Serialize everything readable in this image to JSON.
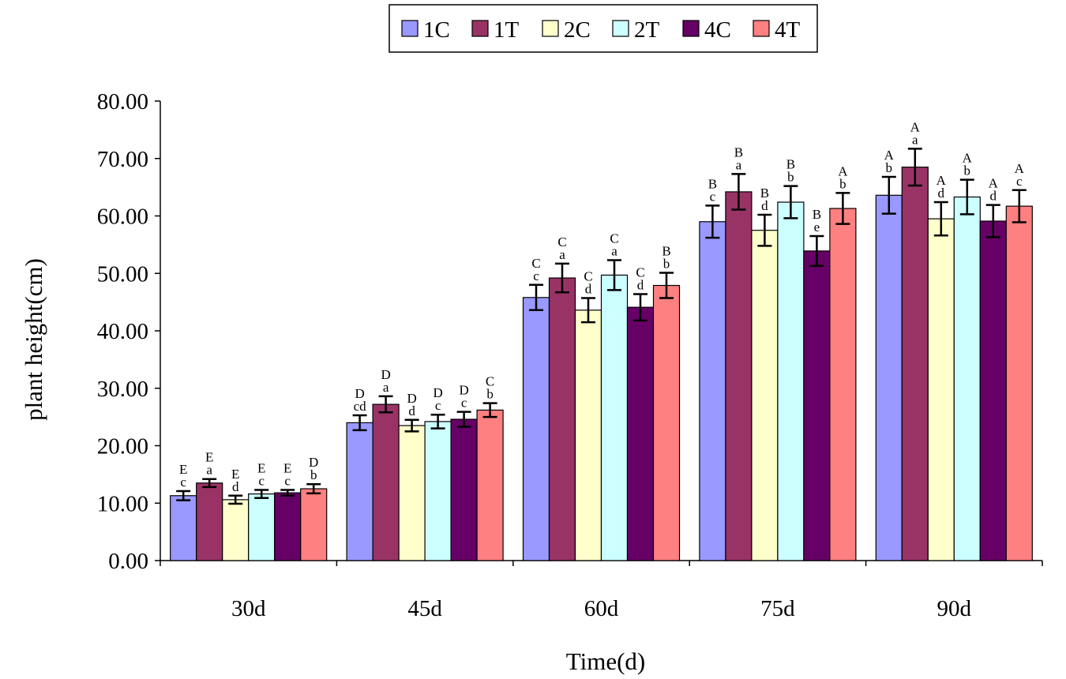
{
  "chart_data": {
    "type": "bar",
    "title": "",
    "xlabel": "Time(d)",
    "ylabel": "plant height(cm)",
    "ylim": [
      0,
      80
    ],
    "ytick_step": 10,
    "ytick_labels": [
      "0.00",
      "10.00",
      "20.00",
      "30.00",
      "40.00",
      "50.00",
      "60.00",
      "70.00",
      "80.00"
    ],
    "grid": false,
    "legend_position": "top-center",
    "categories": [
      "30d",
      "45d",
      "60d",
      "75d",
      "90d"
    ],
    "series": [
      {
        "name": "1C",
        "color": "#9999ff",
        "values": [
          11.3,
          24.0,
          45.8,
          59.0,
          63.6
        ],
        "errors": [
          0.8,
          1.3,
          2.2,
          2.8,
          3.2
        ],
        "letters": [
          [
            "E",
            "c"
          ],
          [
            "D",
            "cd"
          ],
          [
            "C",
            "c"
          ],
          [
            "B",
            "c"
          ],
          [
            "A",
            "b"
          ]
        ]
      },
      {
        "name": "1T",
        "color": "#993366",
        "values": [
          13.5,
          27.2,
          49.2,
          64.2,
          68.5
        ],
        "errors": [
          0.7,
          1.4,
          2.5,
          3.1,
          3.2
        ],
        "letters": [
          [
            "E",
            "a"
          ],
          [
            "D",
            "a"
          ],
          [
            "C",
            "a"
          ],
          [
            "B",
            "a"
          ],
          [
            "A",
            "a"
          ]
        ]
      },
      {
        "name": "2C",
        "color": "#ffffcc",
        "values": [
          10.6,
          23.5,
          43.6,
          57.5,
          59.5
        ],
        "errors": [
          0.7,
          1.0,
          2.1,
          2.7,
          2.9
        ],
        "letters": [
          [
            "E",
            "d"
          ],
          [
            "D",
            "d"
          ],
          [
            "C",
            "d"
          ],
          [
            "B",
            "d"
          ],
          [
            "A",
            "d"
          ]
        ]
      },
      {
        "name": "2T",
        "color": "#ccffff",
        "values": [
          11.6,
          24.2,
          49.7,
          62.4,
          63.3
        ],
        "errors": [
          0.7,
          1.2,
          2.6,
          2.8,
          3.0
        ],
        "letters": [
          [
            "E",
            "c"
          ],
          [
            "D",
            "c"
          ],
          [
            "C",
            "a"
          ],
          [
            "B",
            "b"
          ],
          [
            "A",
            "b"
          ]
        ]
      },
      {
        "name": "4C",
        "color": "#660066",
        "values": [
          11.8,
          24.6,
          44.1,
          53.9,
          59.1
        ],
        "errors": [
          0.5,
          1.3,
          2.3,
          2.6,
          2.8
        ],
        "letters": [
          [
            "E",
            "c"
          ],
          [
            "D",
            "c"
          ],
          [
            "C",
            "d"
          ],
          [
            "B",
            "e"
          ],
          [
            "A",
            "d"
          ]
        ]
      },
      {
        "name": "4T",
        "color": "#ff8080",
        "values": [
          12.5,
          26.2,
          47.9,
          61.3,
          61.7
        ],
        "errors": [
          0.8,
          1.2,
          2.2,
          2.7,
          2.8
        ],
        "letters": [
          [
            "D",
            "b"
          ],
          [
            "C",
            "b"
          ],
          [
            "B",
            "b"
          ],
          [
            "A",
            "b"
          ],
          [
            "A",
            "c"
          ]
        ]
      }
    ]
  }
}
